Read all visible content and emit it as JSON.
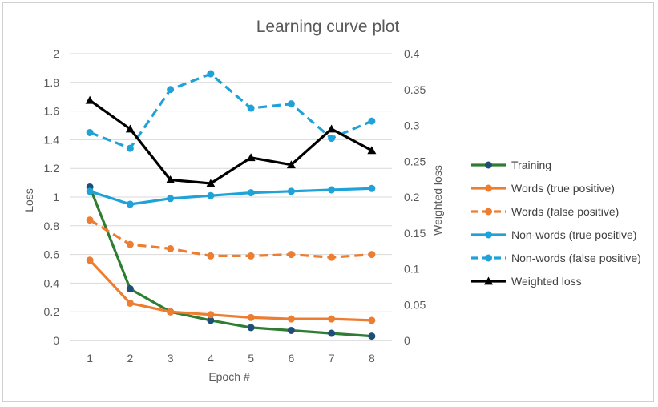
{
  "chart_data": {
    "type": "line",
    "title": "Learning curve plot",
    "xlabel": "Epoch #",
    "ylabel": "Loss",
    "y2label": "Weighted loss",
    "categories": [
      "1",
      "2",
      "3",
      "4",
      "5",
      "6",
      "7",
      "8"
    ],
    "ylim": [
      0,
      2
    ],
    "y2lim": [
      0,
      0.4
    ],
    "yticks": [
      "0",
      "0.2",
      "0.4",
      "0.6",
      "0.8",
      "1",
      "1.2",
      "1.4",
      "1.6",
      "1.8",
      "2"
    ],
    "y2ticks": [
      "0",
      "0.05",
      "0.1",
      "0.15",
      "0.2",
      "0.25",
      "0.3",
      "0.35",
      "0.4"
    ],
    "legend_position": "right",
    "grid": "horizontal",
    "series": [
      {
        "name": "Training",
        "axis": "left",
        "color": "#2e7d32",
        "marker_color": "#1f4e79",
        "dash": false,
        "marker": "circle",
        "values": [
          1.07,
          0.36,
          0.2,
          0.14,
          0.09,
          0.07,
          0.05,
          0.03
        ]
      },
      {
        "name": "Words (true positive)",
        "axis": "left",
        "color": "#ed7d31",
        "marker_color": "#ed7d31",
        "dash": false,
        "marker": "circle",
        "values": [
          0.56,
          0.26,
          0.2,
          0.18,
          0.16,
          0.15,
          0.15,
          0.14
        ]
      },
      {
        "name": "Words (false positive)",
        "axis": "left",
        "color": "#ed7d31",
        "marker_color": "#ed7d31",
        "dash": true,
        "marker": "circle",
        "values": [
          0.84,
          0.67,
          0.64,
          0.59,
          0.59,
          0.6,
          0.58,
          0.6
        ]
      },
      {
        "name": "Non-words (true positive)",
        "axis": "left",
        "color": "#1fa2d8",
        "marker_color": "#1fa2d8",
        "dash": false,
        "marker": "circle",
        "values": [
          1.04,
          0.95,
          0.99,
          1.01,
          1.03,
          1.04,
          1.05,
          1.06
        ]
      },
      {
        "name": "Non-words (false positive)",
        "axis": "left",
        "color": "#1fa2d8",
        "marker_color": "#1fa2d8",
        "dash": true,
        "marker": "circle",
        "values": [
          1.45,
          1.34,
          1.75,
          1.86,
          1.62,
          1.65,
          1.41,
          1.53
        ]
      },
      {
        "name": "Weighted loss",
        "axis": "right",
        "color": "#000000",
        "marker_color": "#000000",
        "dash": false,
        "marker": "triangle",
        "values": [
          0.335,
          0.295,
          0.224,
          0.219,
          0.255,
          0.245,
          0.295,
          0.265
        ]
      }
    ]
  }
}
